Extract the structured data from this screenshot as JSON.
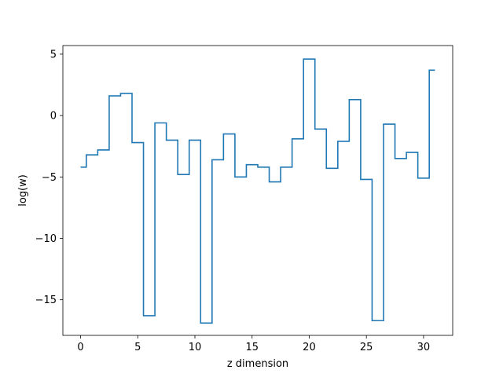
{
  "chart_data": {
    "type": "line",
    "drawstyle": "steps-mid",
    "title": "",
    "xlabel": "z dimension",
    "ylabel": "log(w)",
    "xlim": [
      -1.55,
      32.55
    ],
    "ylim": [
      -17.9,
      5.7
    ],
    "xticks": [
      0,
      5,
      10,
      15,
      20,
      25,
      30
    ],
    "xtick_labels": [
      "0",
      "5",
      "10",
      "15",
      "20",
      "25",
      "30"
    ],
    "yticks": [
      5,
      0,
      -5,
      -10,
      -15
    ],
    "ytick_labels": [
      "5",
      "0",
      "−5",
      "−10",
      "−15"
    ],
    "grid": false,
    "series": [
      {
        "color": "#1f77b4",
        "x": [
          0,
          1,
          2,
          3,
          4,
          5,
          6,
          7,
          8,
          9,
          10,
          11,
          12,
          13,
          14,
          15,
          16,
          17,
          18,
          19,
          20,
          21,
          22,
          23,
          24,
          25,
          26,
          27,
          28,
          29,
          30,
          31
        ],
        "y": [
          -4.2,
          -3.2,
          -2.8,
          1.6,
          1.8,
          -2.2,
          -16.3,
          -0.6,
          -2.0,
          -4.8,
          -2.0,
          -16.9,
          -3.6,
          -1.5,
          -5.0,
          -4.0,
          -4.2,
          -5.4,
          -4.2,
          -1.9,
          4.6,
          -1.1,
          -4.3,
          -2.1,
          1.3,
          -5.2,
          -16.7,
          -0.7,
          -3.5,
          -3.0,
          -5.1,
          3.7
        ]
      }
    ]
  }
}
